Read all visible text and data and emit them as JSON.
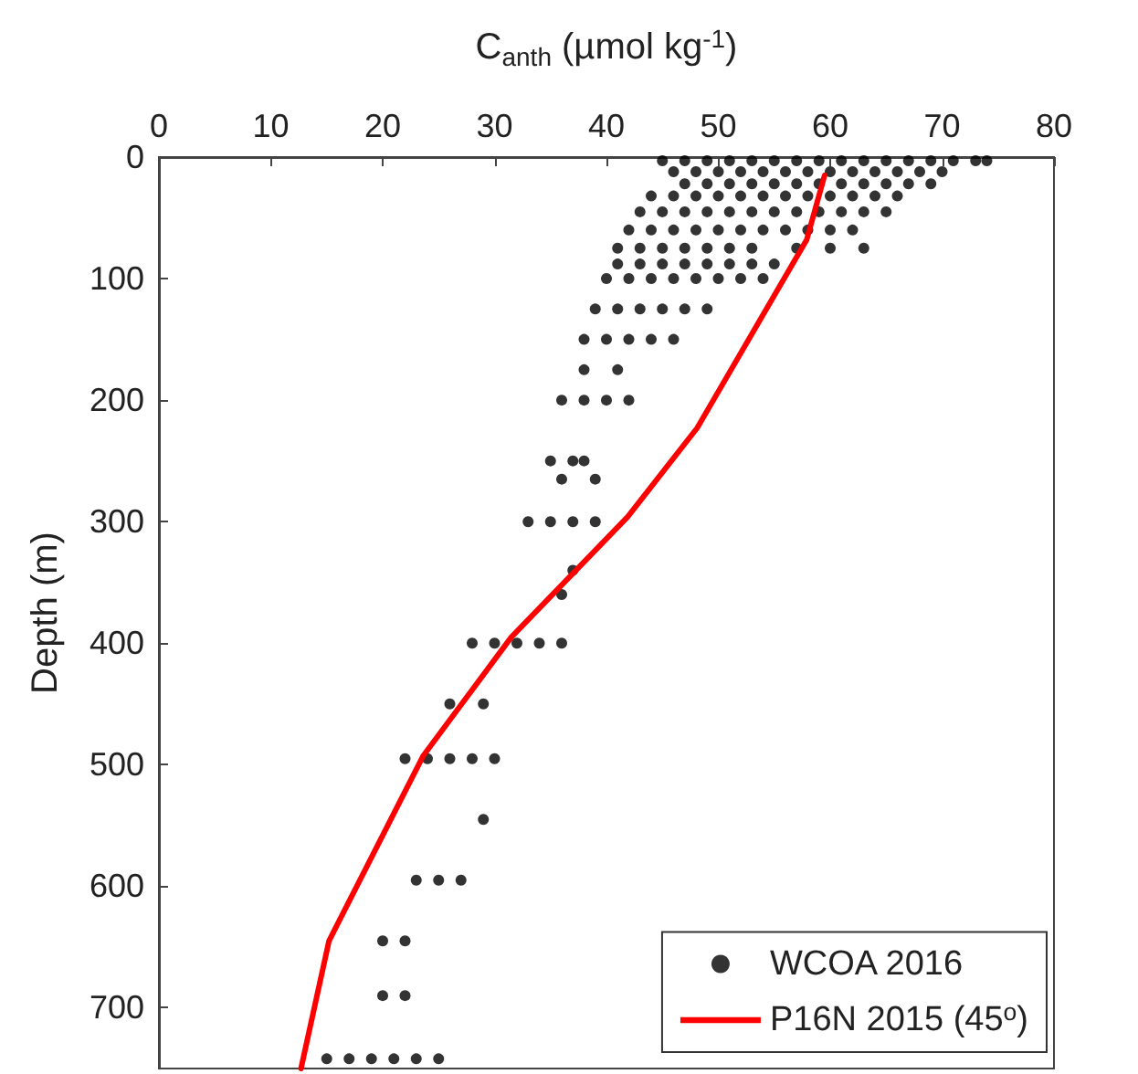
{
  "chart_data": {
    "type": "scatter",
    "xlabel": "C$_{anth}$ (µmol kg$^{-1}$)",
    "ylabel": "Depth (m)",
    "xlim": [
      0,
      80
    ],
    "xticks": [
      0,
      10,
      20,
      30,
      40,
      50,
      60,
      70,
      80
    ],
    "ylim": [
      750,
      0
    ],
    "yticks": [
      0,
      100,
      200,
      300,
      400,
      500,
      600,
      700
    ],
    "grid": false,
    "legend": "bottom right",
    "marker": "circle",
    "series": [
      {
        "name": "WCOA 2016",
        "color": "#000000",
        "x": [
          45,
          47,
          49,
          51,
          53,
          55,
          57,
          59,
          61,
          63,
          65,
          67,
          69,
          71,
          73,
          74,
          46,
          48,
          50,
          52,
          54,
          56,
          58,
          60,
          62,
          64,
          66,
          68,
          70,
          47,
          49,
          51,
          53,
          55,
          57,
          59,
          61,
          63,
          65,
          67,
          69,
          44,
          46,
          48,
          50,
          52,
          54,
          56,
          58,
          60,
          62,
          64,
          66,
          43,
          45,
          47,
          49,
          51,
          53,
          55,
          57,
          59,
          61,
          63,
          65,
          42,
          44,
          46,
          48,
          50,
          52,
          54,
          56,
          58,
          60,
          62,
          41,
          43,
          45,
          47,
          49,
          51,
          53,
          57,
          60,
          63,
          41,
          43,
          45,
          47,
          49,
          51,
          53,
          55,
          40,
          42,
          44,
          46,
          48,
          50,
          52,
          54,
          39,
          41,
          43,
          45,
          47,
          49,
          38,
          40,
          42,
          44,
          46,
          38,
          41,
          36,
          38,
          40,
          42,
          35,
          37,
          38,
          36,
          39,
          33,
          35,
          37,
          39,
          37,
          36,
          28,
          30,
          32,
          34,
          36,
          26,
          29,
          22,
          24,
          26,
          28,
          30,
          29,
          23,
          25,
          27,
          20,
          22,
          20,
          22,
          15,
          17,
          19,
          21,
          23,
          25
        ],
        "values": [
          3,
          3,
          3,
          3,
          3,
          3,
          3,
          3,
          3,
          3,
          3,
          3,
          3,
          3,
          3,
          3,
          12,
          12,
          12,
          12,
          12,
          12,
          12,
          12,
          12,
          12,
          12,
          12,
          12,
          22,
          22,
          22,
          22,
          22,
          22,
          22,
          22,
          22,
          22,
          22,
          22,
          32,
          32,
          32,
          32,
          32,
          32,
          32,
          32,
          32,
          32,
          32,
          32,
          45,
          45,
          45,
          45,
          45,
          45,
          45,
          45,
          45,
          45,
          45,
          45,
          60,
          60,
          60,
          60,
          60,
          60,
          60,
          60,
          60,
          60,
          60,
          75,
          75,
          75,
          75,
          75,
          75,
          75,
          75,
          75,
          75,
          88,
          88,
          88,
          88,
          88,
          88,
          88,
          88,
          100,
          100,
          100,
          100,
          100,
          100,
          100,
          100,
          125,
          125,
          125,
          125,
          125,
          125,
          150,
          150,
          150,
          150,
          150,
          175,
          175,
          200,
          200,
          200,
          200,
          250,
          250,
          250,
          265,
          265,
          300,
          300,
          300,
          300,
          340,
          360,
          400,
          400,
          400,
          400,
          400,
          450,
          450,
          495,
          495,
          495,
          495,
          495,
          545,
          595,
          595,
          595,
          645,
          645,
          690,
          690,
          742,
          742,
          742,
          742,
          742,
          742
        ]
      },
      {
        "name": "P16N 2015 (45$^{o}$)",
        "type": "line",
        "color": "#ff0000",
        "marker": "none",
        "line_style": "solid",
        "x": [
          59.5,
          57.9,
          48.1,
          41.9,
          31.5,
          23.6,
          15.2,
          12.7
        ],
        "values": [
          15,
          68,
          223,
          296,
          395,
          493,
          645,
          750
        ]
      }
    ]
  }
}
